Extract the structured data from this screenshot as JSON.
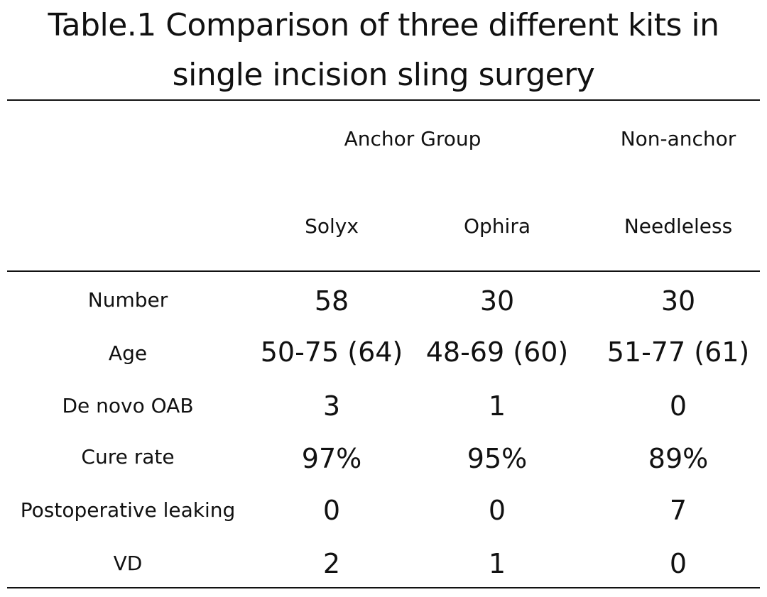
{
  "title": {
    "line1": "Table.1 Comparison of three different kits in",
    "line2": "single incision sling surgery"
  },
  "header": {
    "groups": [
      "Anchor Group",
      "Non-anchor"
    ],
    "kits": [
      "Solyx",
      "Ophira",
      "Needleless"
    ]
  },
  "rows": [
    {
      "label": "Number",
      "values": [
        "58",
        "30",
        "30"
      ]
    },
    {
      "label": "Age",
      "values": [
        "50-75 (64)",
        "48-69 (60)",
        "51-77 (61)"
      ]
    },
    {
      "label": "De novo OAB",
      "values": [
        "3",
        "1",
        "0"
      ]
    },
    {
      "label": "Cure rate",
      "values": [
        "97%",
        "95%",
        "89%"
      ]
    },
    {
      "label": "Postoperative leaking",
      "values": [
        "0",
        "0",
        "7"
      ]
    },
    {
      "label": "VD",
      "values": [
        "2",
        "1",
        "0"
      ]
    }
  ]
}
